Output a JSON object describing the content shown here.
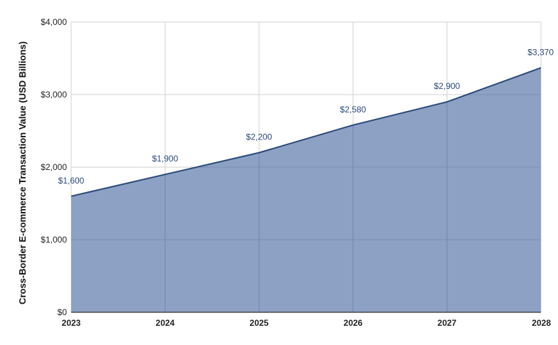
{
  "chart_data": {
    "type": "area",
    "title": "",
    "xlabel": "",
    "ylabel": "Cross-Border E-commerce Transaction Value (USD Billions)",
    "categories": [
      "2023",
      "2024",
      "2025",
      "2026",
      "2027",
      "2028"
    ],
    "series": [
      {
        "values": [
          1600,
          1900,
          2200,
          2580,
          2900,
          3370
        ],
        "data_labels": [
          "$1,600",
          "$1,900",
          "$2,200",
          "$2,580",
          "$2,900",
          "$3,370"
        ]
      }
    ],
    "ylim": [
      0,
      4000
    ],
    "yticks": [
      0,
      1000,
      2000,
      3000,
      4000
    ],
    "ytick_labels": [
      "$0",
      "$1,000",
      "$2,000",
      "$3,000",
      "$4,000"
    ],
    "grid": true,
    "legend": "none",
    "colors": {
      "fill": "#8da1c4",
      "line": "#2a4a7a",
      "grid": "#d0d0d0",
      "label": "#2a4a7a"
    }
  }
}
